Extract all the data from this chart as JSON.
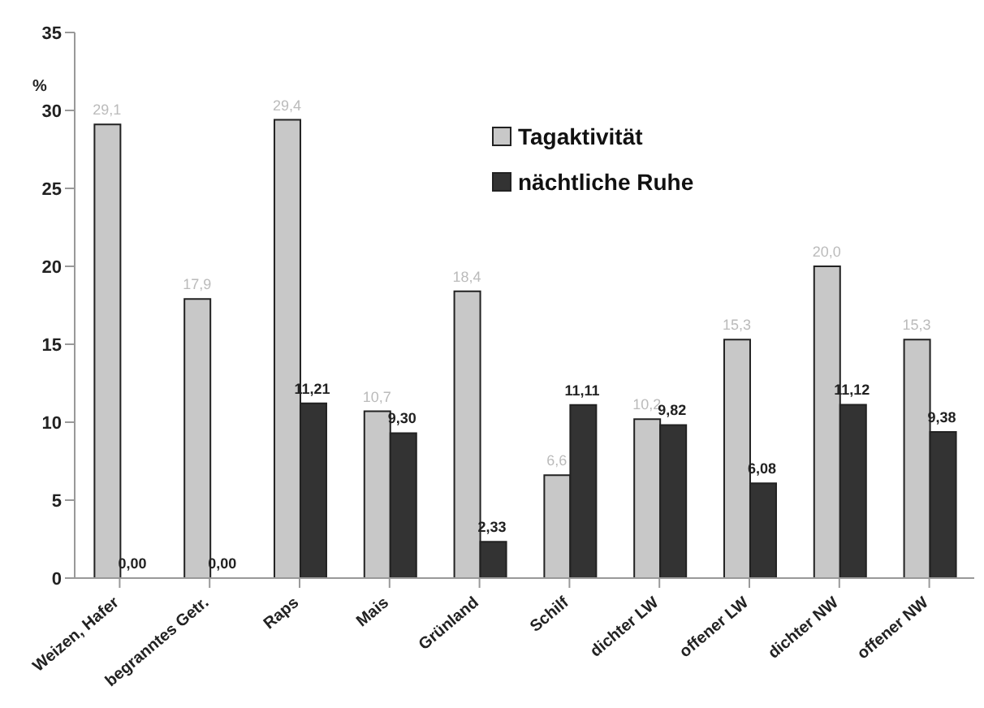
{
  "chart_data": {
    "type": "bar",
    "categories": [
      "Weizen, Hafer",
      "begranntes Getr.",
      "Raps",
      "Mais",
      "Grünland",
      "Schilf",
      "dichter LW",
      "offener LW",
      "dichter NW",
      "offener NW"
    ],
    "series": [
      {
        "name": "Tagaktivität",
        "color": "#c8c8c8",
        "values": [
          29.1,
          17.9,
          29.4,
          10.7,
          18.4,
          6.6,
          10.2,
          15.3,
          20.0,
          15.3
        ],
        "value_labels": [
          "29,1",
          "17,9",
          "29,4",
          "10,7",
          "18,4",
          "6,6",
          "10,2",
          "15,3",
          "20,0",
          "15,3"
        ]
      },
      {
        "name": "nächtliche Ruhe",
        "color": "#333333",
        "values": [
          0.0,
          0.0,
          11.21,
          9.3,
          2.33,
          11.11,
          9.82,
          6.08,
          11.12,
          9.38
        ],
        "value_labels": [
          "0,00",
          "0,00",
          "11,21",
          "9,30",
          "2,33",
          "11,11",
          "9,82",
          "6,08",
          "11,12",
          "9,38"
        ]
      }
    ],
    "ylabel": "%",
    "ylim": [
      0,
      35
    ],
    "yticks": [
      0,
      5,
      10,
      15,
      20,
      25,
      30,
      35
    ],
    "legend": "top right"
  }
}
